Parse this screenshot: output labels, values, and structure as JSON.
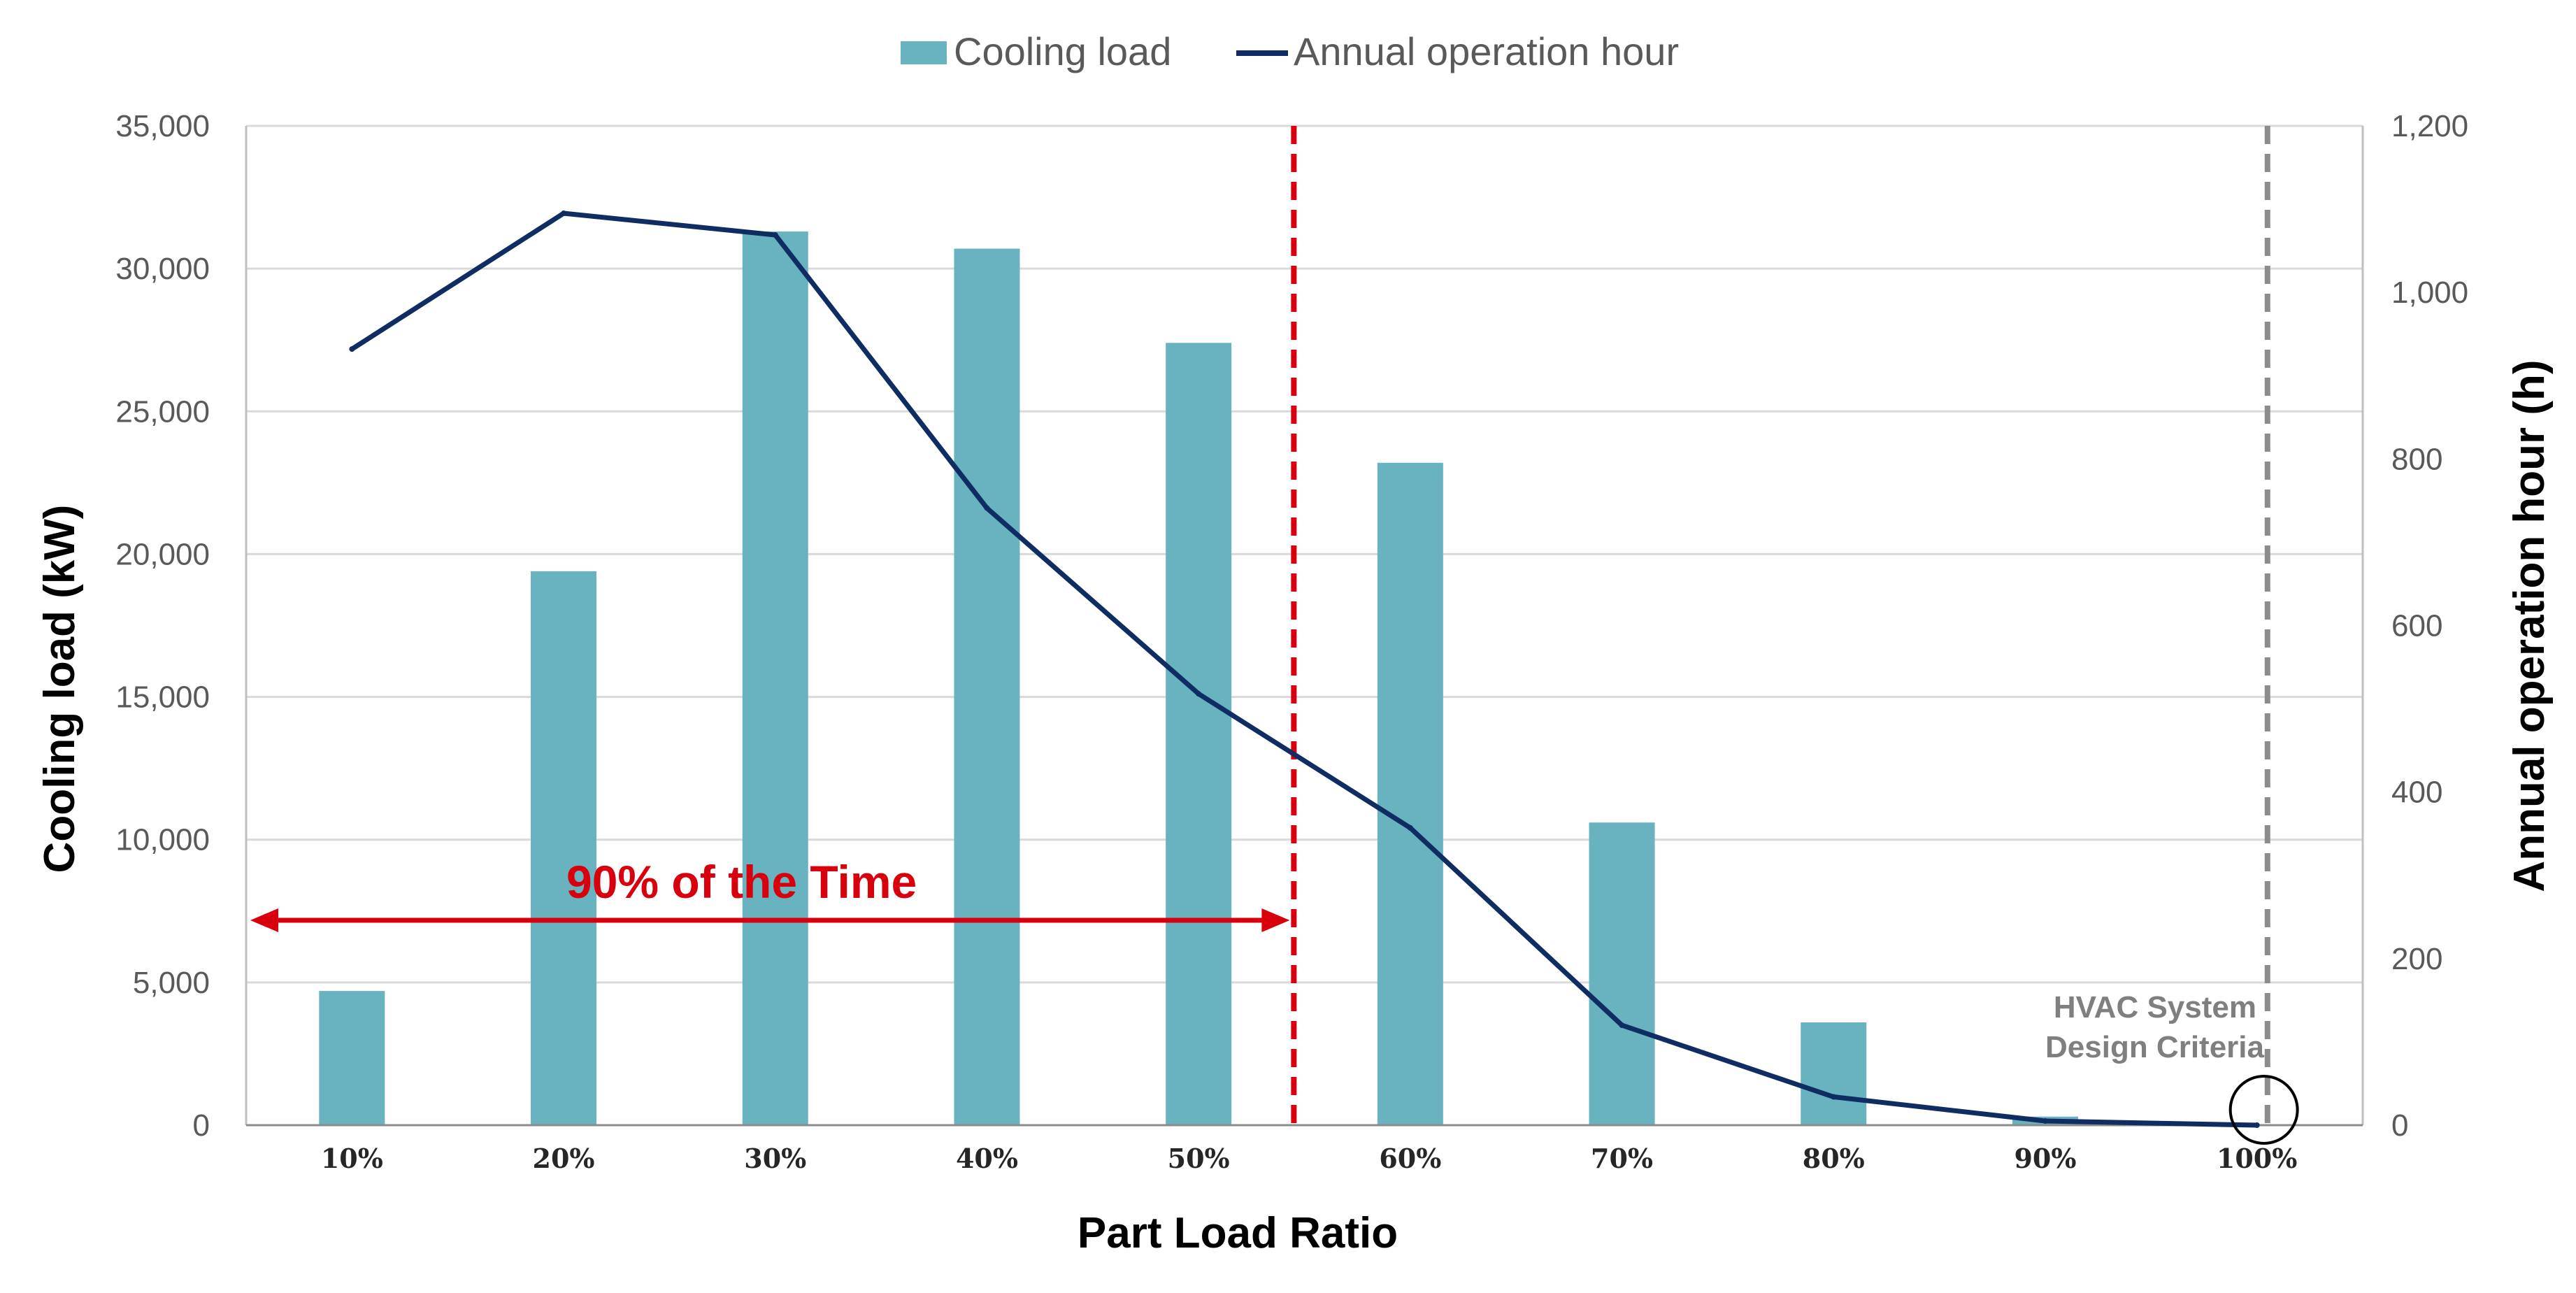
{
  "chart_data": {
    "type": "bar+line",
    "categories": [
      "10%",
      "20%",
      "30%",
      "40%",
      "50%",
      "60%",
      "70%",
      "80%",
      "90%",
      "100%"
    ],
    "series": [
      {
        "name": "Cooling load",
        "type": "bar",
        "axis": "left",
        "values": [
          4700,
          19400,
          31300,
          30700,
          27400,
          23200,
          10600,
          3600,
          300,
          0
        ]
      },
      {
        "name": "Annual operation hour",
        "type": "line",
        "axis": "right",
        "values": [
          932,
          1095,
          1069,
          741,
          518,
          357,
          120,
          34,
          5,
          0
        ]
      }
    ],
    "xlabel": "Part Load Ratio",
    "ylabel": "Cooling load (kW)",
    "y2label": "Annual operation hour (h)",
    "ylim": [
      0,
      35000
    ],
    "y2lim": [
      0,
      1200
    ],
    "yticks": [
      "0",
      "5,000",
      "10,000",
      "15,000",
      "20,000",
      "25,000",
      "30,000",
      "35,000"
    ],
    "y2ticks": [
      "0",
      "200",
      "400",
      "600",
      "800",
      "1,000",
      "1,200"
    ],
    "legend": [
      "Cooling load",
      "Annual operation hour"
    ],
    "legend_position": "top-center",
    "grid": true,
    "annotations": {
      "time_label": "90% of the Time",
      "time_line_x": 5.45,
      "design_label_line1": "HVAC System",
      "design_label_line2": "Design Criteria",
      "design_line_x": 10.05
    },
    "colors": {
      "bar": "#68b3bf",
      "line": "#0f2d63",
      "red": "#d9000d",
      "gray_dashed": "#8c8c8c",
      "grid": "#d9d9d9"
    }
  }
}
